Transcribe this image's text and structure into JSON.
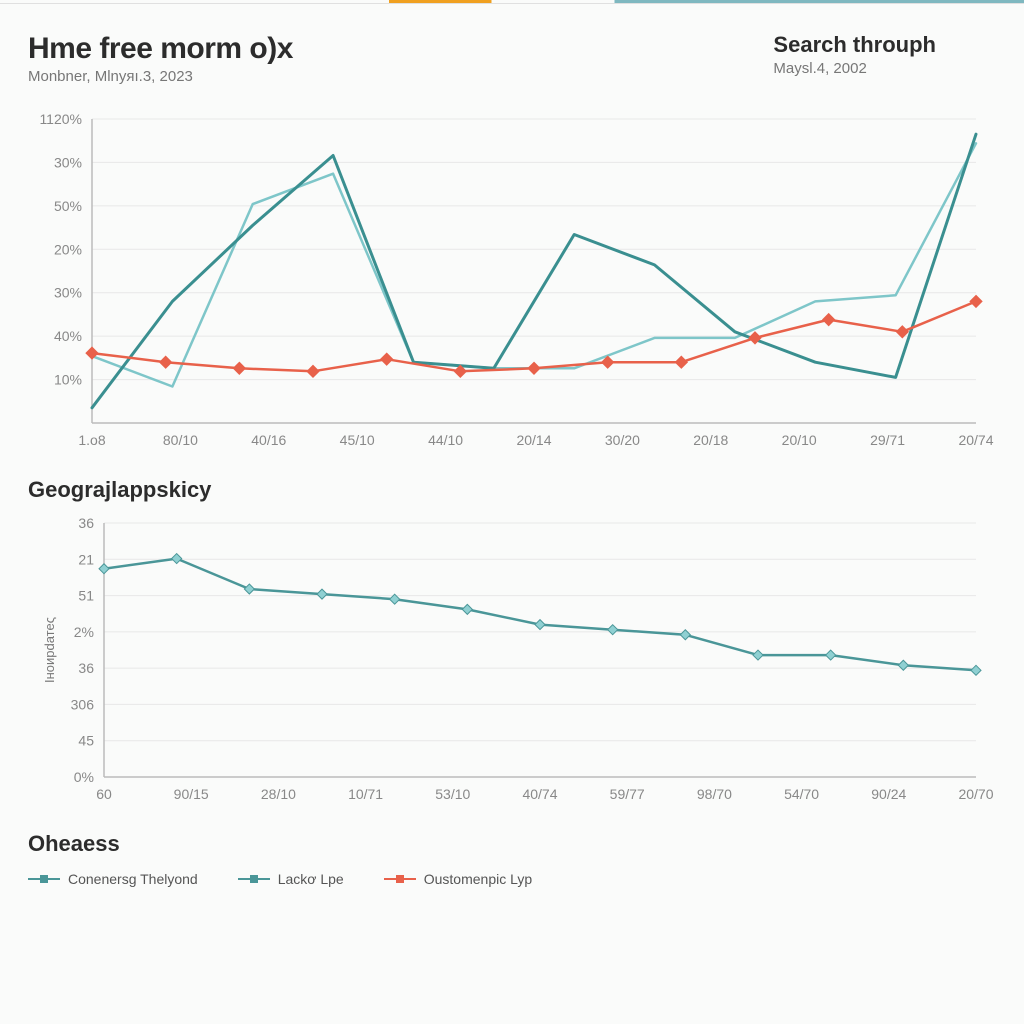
{
  "header": {
    "title_left": "Hme free morm o)x",
    "subtitle_left": "Monbner, Mlnyяı.3, 2023",
    "title_right": "Search throuph",
    "subtitle_right": "Maysl.4, 2002"
  },
  "chart1": {
    "type": "line",
    "background_color": "#fcfdfc",
    "grid_color": "#e8e8e8",
    "axis_color": "#bbbbbb",
    "x_labels": [
      "1.o8",
      "80/10",
      "40/16",
      "45/10",
      "44/10",
      "20/14",
      "30/20",
      "20/18",
      "20/10",
      "29/71",
      "20/74"
    ],
    "y_labels": [
      "1120%",
      "30%",
      "50%",
      "20%",
      "30%",
      "40%",
      "10%",
      ""
    ],
    "y_baseline_divisions": 7,
    "label_fontsize": 14,
    "series": [
      {
        "name": "Conenersg Thelyond",
        "color": "#7ec6c9",
        "line_width": 2.5,
        "marker": "none",
        "y_norm": [
          0.78,
          0.88,
          0.28,
          0.18,
          0.8,
          0.82,
          0.82,
          0.72,
          0.72,
          0.6,
          0.58,
          0.08
        ]
      },
      {
        "name": "Lackơ Lpe",
        "color": "#3a8f90",
        "line_width": 3,
        "marker": "none",
        "y_norm": [
          0.95,
          0.6,
          0.35,
          0.12,
          0.8,
          0.82,
          0.38,
          0.48,
          0.7,
          0.8,
          0.85,
          0.05
        ]
      },
      {
        "name": "Oustomenpic Lyp",
        "color": "#e8614a",
        "line_width": 2.5,
        "marker": "diamond",
        "marker_size": 6,
        "y_norm": [
          0.77,
          0.8,
          0.82,
          0.83,
          0.79,
          0.83,
          0.82,
          0.8,
          0.8,
          0.72,
          0.66,
          0.7,
          0.6
        ]
      }
    ]
  },
  "chart2": {
    "type": "line",
    "title": "Geograjlappskicy",
    "y_axis_title": "Іноирdатеς",
    "background_color": "#fcfdfc",
    "grid_color": "#e8e8e8",
    "axis_color": "#bbbbbb",
    "x_labels": [
      "60",
      "90/15",
      "28/10",
      "10/71",
      "53/10",
      "40/74",
      "59/77",
      "98/70",
      "54/70",
      "90/24",
      "20/70"
    ],
    "y_labels": [
      "36",
      "21",
      "51",
      "2%",
      "36",
      "306",
      "45",
      "0%"
    ],
    "label_fontsize": 14,
    "series": [
      {
        "name": "line",
        "color": "#4a9698",
        "line_width": 2.5,
        "marker": "diamond",
        "marker_size": 5,
        "marker_color": "#8fd0d2",
        "y_norm": [
          0.18,
          0.14,
          0.26,
          0.28,
          0.3,
          0.34,
          0.4,
          0.42,
          0.44,
          0.52,
          0.52,
          0.56,
          0.58
        ]
      }
    ]
  },
  "section3": {
    "title": "Oheaess"
  },
  "legend": {
    "items": [
      {
        "label": "Conenersg Thelyond",
        "color": "#4a9698"
      },
      {
        "label": "Lackơ Lpe",
        "color": "#4a9698"
      },
      {
        "label": "Oustomenpic Lyp",
        "color": "#e8614a"
      }
    ]
  }
}
